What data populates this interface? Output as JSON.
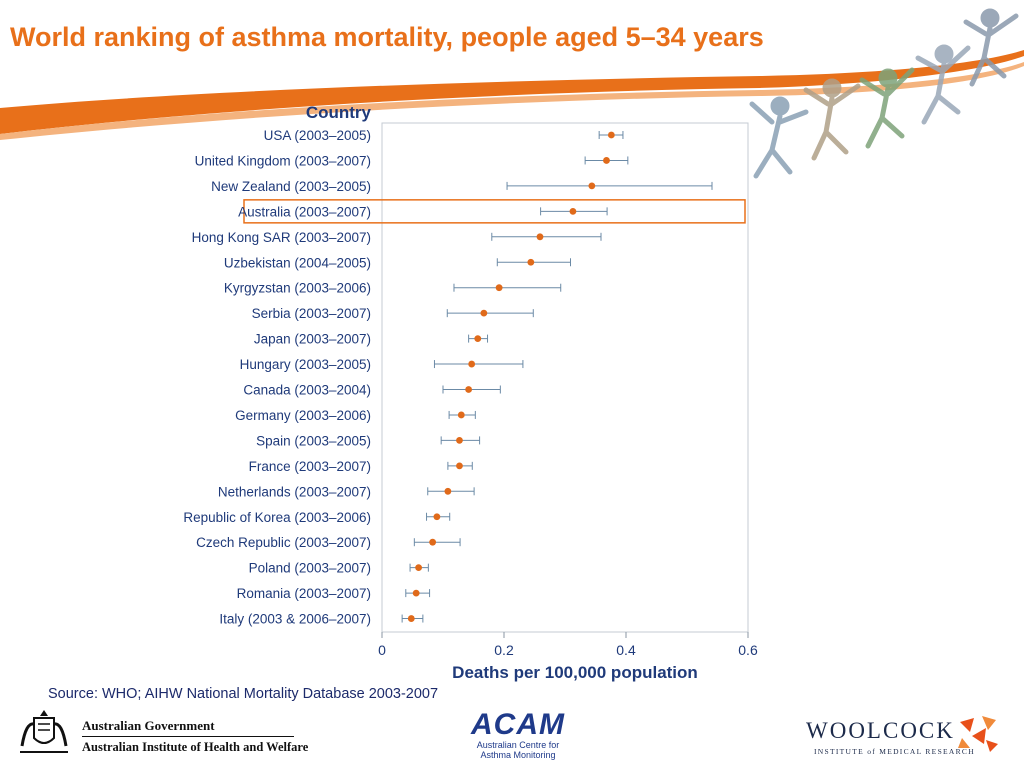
{
  "slide": {
    "title": "World ranking of asthma mortality, people aged 5–34 years",
    "source": "Source: WHO; AIHW National Mortality Database 2003-2007",
    "colors": {
      "title": "#e8701a",
      "accent": "#e8701a",
      "marker": "#e06a1a",
      "errorbar": "#6b8aa6",
      "axis": "#1f3a7a"
    }
  },
  "footer": {
    "gov_line1": "Australian Government",
    "gov_line2": "Australian Institute of Health and Welfare",
    "acam_word": "ACAM",
    "acam_sub1": "Australian Centre for",
    "acam_sub2": "Asthma Monitoring",
    "woolcock_word": "WOOLCOCK",
    "woolcock_sub": "INSTITUTE of MEDICAL RESEARCH"
  },
  "chart_data": {
    "type": "scatter",
    "legend_title": "Country",
    "xlabel": "Deaths per 100,000 population",
    "xlim": [
      0,
      0.6
    ],
    "xticks": [
      0,
      0.2,
      0.4,
      0.6
    ],
    "xtick_labels": [
      "0",
      "0.2",
      "0.4",
      "0.6"
    ],
    "grid": false,
    "highlight": "Australia (2003–2007)",
    "points": [
      {
        "label": "USA (2003–2005)",
        "value": 0.376,
        "low": 0.356,
        "high": 0.395
      },
      {
        "label": "United Kingdom (2003–2007)",
        "value": 0.368,
        "low": 0.333,
        "high": 0.403
      },
      {
        "label": "New Zealand (2003–2005)",
        "value": 0.344,
        "low": 0.205,
        "high": 0.541
      },
      {
        "label": "Australia (2003–2007)",
        "value": 0.313,
        "low": 0.26,
        "high": 0.369
      },
      {
        "label": "Hong Kong SAR (2003–2007)",
        "value": 0.259,
        "low": 0.18,
        "high": 0.359
      },
      {
        "label": "Uzbekistan (2004–2005)",
        "value": 0.244,
        "low": 0.189,
        "high": 0.309
      },
      {
        "label": "Kyrgyzstan (2003–2006)",
        "value": 0.192,
        "low": 0.118,
        "high": 0.293
      },
      {
        "label": "Serbia (2003–2007)",
        "value": 0.167,
        "low": 0.107,
        "high": 0.248
      },
      {
        "label": "Japan (2003–2007)",
        "value": 0.157,
        "low": 0.142,
        "high": 0.173
      },
      {
        "label": "Hungary (2003–2005)",
        "value": 0.147,
        "low": 0.086,
        "high": 0.231
      },
      {
        "label": "Canada (2003–2004)",
        "value": 0.142,
        "low": 0.1,
        "high": 0.194
      },
      {
        "label": "Germany (2003–2006)",
        "value": 0.13,
        "low": 0.11,
        "high": 0.153
      },
      {
        "label": "Spain (2003–2005)",
        "value": 0.127,
        "low": 0.097,
        "high": 0.16
      },
      {
        "label": "France (2003–2007)",
        "value": 0.127,
        "low": 0.108,
        "high": 0.148
      },
      {
        "label": "Netherlands (2003–2007)",
        "value": 0.108,
        "low": 0.075,
        "high": 0.151
      },
      {
        "label": "Republic of Korea (2003–2006)",
        "value": 0.09,
        "low": 0.073,
        "high": 0.111
      },
      {
        "label": "Czech Republic (2003–2007)",
        "value": 0.083,
        "low": 0.053,
        "high": 0.128
      },
      {
        "label": "Poland (2003–2007)",
        "value": 0.06,
        "low": 0.046,
        "high": 0.076
      },
      {
        "label": "Romania (2003–2007)",
        "value": 0.056,
        "low": 0.039,
        "high": 0.078
      },
      {
        "label": "Italy (2003 & 2006–2007)",
        "value": 0.048,
        "low": 0.033,
        "high": 0.067
      }
    ]
  }
}
